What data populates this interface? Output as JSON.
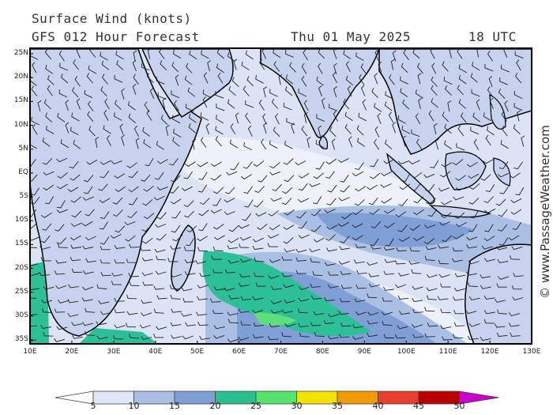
{
  "header": {
    "title": "Surface Wind (knots)",
    "forecast": "GFS 012 Hour Forecast",
    "date": "Thu 01 May 2025",
    "time": "18 UTC"
  },
  "credit": "© www.PassageWeather.com",
  "axes": {
    "lat_labels": [
      "25N",
      "20N",
      "15N",
      "10N",
      "5N",
      "EQ",
      "5S",
      "10S",
      "15S",
      "20S",
      "25S",
      "30S",
      "35S"
    ],
    "lon_labels": [
      "10E",
      "20E",
      "30E",
      "40E",
      "50E",
      "60E",
      "70E",
      "80E",
      "90E",
      "100E",
      "110E",
      "120E",
      "130E"
    ]
  },
  "colorscale": {
    "labels": [
      "5",
      "10",
      "15",
      "20",
      "25",
      "30",
      "35",
      "40",
      "45",
      "50"
    ],
    "colors": [
      "#ffffff",
      "#dfe6f6",
      "#a9bfe3",
      "#7f9fd6",
      "#2bbf90",
      "#55e36e",
      "#f2e200",
      "#f29a00",
      "#e74030",
      "#b80000",
      "#c800c8"
    ]
  },
  "map_colors": {
    "calm": "#f4f5fb",
    "light": "#d9e1f3",
    "moderate": "#a9bfe3",
    "fresh": "#7396d6",
    "strong": "#2dbf96",
    "gale": "#5fe07a",
    "coast": "#000000",
    "border": "#8a8a8a"
  }
}
